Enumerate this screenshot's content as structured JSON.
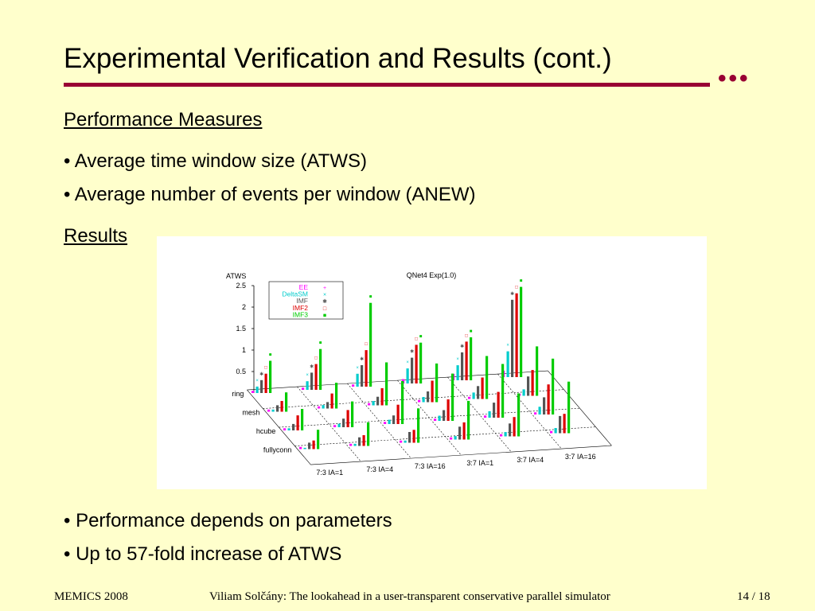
{
  "slide": {
    "title": "Experimental Verification and Results (cont.)",
    "title_ornament": "•••",
    "colors": {
      "background": "#ffffcc",
      "accent": "#990033"
    },
    "sections": {
      "performance_heading": "Performance Measures",
      "results_heading": "Results"
    },
    "bullets_top": [
      "• Average time window size (ATWS)",
      "• Average number of events per window (ANEW)"
    ],
    "bullets_bottom": [
      "• Performance depends on parameters",
      "• Up to 57-fold increase of ATWS"
    ],
    "footer": {
      "left": "MEMICS 2008",
      "center": "Viliam Solčány: The lookahead in a user-transparent conservative parallel simulator",
      "right": "14 / 18"
    }
  },
  "chart_data": {
    "type": "bar",
    "title": "QNet4 Exp(1.0)",
    "zlabel": "ATWS",
    "zlim": [
      0,
      2.5
    ],
    "z_ticks": [
      "2.5",
      "2",
      "1.5",
      "1",
      "0.5"
    ],
    "x_categories": [
      "7:3 IA=1",
      "7:3 IA=4",
      "7:3 IA=16",
      "3:7 IA=1",
      "3:7 IA=4",
      "3:7 IA=16"
    ],
    "y_categories": [
      "ring",
      "mesh",
      "hcube",
      "fullyconn"
    ],
    "legend": [
      {
        "name": "EE",
        "color": "#ff00ff",
        "marker": "+"
      },
      {
        "name": "DeltaSM",
        "color": "#00cccc",
        "marker": "×"
      },
      {
        "name": "IMF",
        "color": "#555555",
        "marker": "✱"
      },
      {
        "name": "IMF2",
        "color": "#dd0000",
        "marker": "□"
      },
      {
        "name": "IMF3",
        "color": "#00cc00",
        "marker": "■"
      }
    ],
    "legend_position": "top-left",
    "series": [
      {
        "name": "EE",
        "values": [
          [
            0.05,
            0.05,
            0.05,
            0.1,
            0.15,
            0.15
          ],
          [
            0.05,
            0.05,
            0.05,
            0.05,
            0.05,
            0.05
          ],
          [
            0.05,
            0.05,
            0.05,
            0.05,
            0.05,
            0.05
          ],
          [
            0.05,
            0.05,
            0.05,
            0.05,
            0.05,
            0.05
          ]
        ]
      },
      {
        "name": "DeltaSM",
        "values": [
          [
            0.15,
            0.2,
            0.3,
            0.35,
            0.35,
            0.6
          ],
          [
            0.05,
            0.08,
            0.1,
            0.12,
            0.15,
            0.15
          ],
          [
            0.05,
            0.08,
            0.1,
            0.12,
            0.15,
            0.18
          ],
          [
            0.03,
            0.05,
            0.05,
            0.08,
            0.1,
            0.12
          ]
        ]
      },
      {
        "name": "IMF",
        "values": [
          [
            0.3,
            0.4,
            0.5,
            0.6,
            0.65,
            1.8
          ],
          [
            0.15,
            0.15,
            0.2,
            0.25,
            0.3,
            0.45
          ],
          [
            0.15,
            0.2,
            0.2,
            0.25,
            0.35,
            0.4
          ],
          [
            0.15,
            0.2,
            0.25,
            0.3,
            0.3,
            0.4
          ]
        ]
      },
      {
        "name": "IMF2",
        "values": [
          [
            0.45,
            0.6,
            0.85,
            0.9,
            0.9,
            1.95
          ],
          [
            0.25,
            0.35,
            0.4,
            0.5,
            0.5,
            0.6
          ],
          [
            0.35,
            0.4,
            0.45,
            0.5,
            0.6,
            0.7
          ],
          [
            0.2,
            0.25,
            0.3,
            0.4,
            0.45,
            0.45
          ]
        ]
      },
      {
        "name": "IMF3",
        "values": [
          [
            0.75,
            0.95,
            1.95,
            0.95,
            1.0,
            2.1
          ],
          [
            0.45,
            0.6,
            1.0,
            0.9,
            1.0,
            1.15
          ],
          [
            0.5,
            0.6,
            1.0,
            1.1,
            1.25,
            1.3
          ],
          [
            0.45,
            0.55,
            0.8,
            0.9,
            1.0,
            1.2
          ]
        ]
      }
    ]
  }
}
